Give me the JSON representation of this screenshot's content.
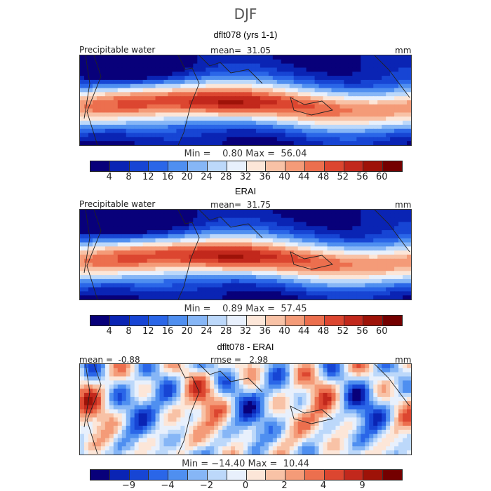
{
  "title": "DJF",
  "panels": [
    {
      "title": "dflt078 (yrs 1-1)",
      "left_label": "Precipitable water",
      "center_label": "mean=  31.05",
      "right_label": "mm",
      "minmax": "Min =    0.80 Max =  56.04",
      "colorbar": {
        "colors": [
          "#08007a",
          "#0a24b4",
          "#1745d4",
          "#2a66e8",
          "#4f8ff0",
          "#86b6f6",
          "#bcd8fa",
          "#e8f0fc",
          "#fce6d8",
          "#f8c2a6",
          "#f49b78",
          "#ec6f4e",
          "#dc4630",
          "#c2281c",
          "#9e1208",
          "#740000"
        ],
        "ticks": [
          "4",
          "8",
          "12",
          "16",
          "20",
          "24",
          "28",
          "32",
          "36",
          "40",
          "44",
          "48",
          "52",
          "56",
          "60"
        ]
      }
    },
    {
      "title": "ERAI",
      "left_label": "Precipitable water",
      "center_label": "mean=  31.75",
      "right_label": "mm",
      "minmax": "Min =    0.89 Max =  57.45",
      "colorbar": {
        "colors": [
          "#08007a",
          "#0a24b4",
          "#1745d4",
          "#2a66e8",
          "#4f8ff0",
          "#86b6f6",
          "#bcd8fa",
          "#e8f0fc",
          "#fce6d8",
          "#f8c2a6",
          "#f49b78",
          "#ec6f4e",
          "#dc4630",
          "#c2281c",
          "#9e1208",
          "#740000"
        ],
        "ticks": [
          "4",
          "8",
          "12",
          "16",
          "20",
          "24",
          "28",
          "32",
          "36",
          "40",
          "44",
          "48",
          "52",
          "56",
          "60"
        ]
      }
    },
    {
      "title": "dflt078 - ERAI",
      "left_label": "mean =  -0.88",
      "center_label": "rmse =   2.98",
      "right_label": "mm",
      "minmax": "Min = −14.40 Max =  10.44",
      "colorbar": {
        "colors": [
          "#08007a",
          "#0a24b4",
          "#1745d4",
          "#2a66e8",
          "#4f8ff0",
          "#86b6f6",
          "#bcd8fa",
          "#e8f0fc",
          "#fce6d8",
          "#f8c2a6",
          "#f49b78",
          "#ec6f4e",
          "#dc4630",
          "#c2281c",
          "#9e1208",
          "#740000"
        ],
        "ticks": [
          "−9",
          "−4",
          "−2",
          "0",
          "2",
          "4",
          "9"
        ],
        "tick_index": [
          1,
          3,
          5,
          7,
          9,
          11,
          13
        ]
      }
    }
  ]
}
